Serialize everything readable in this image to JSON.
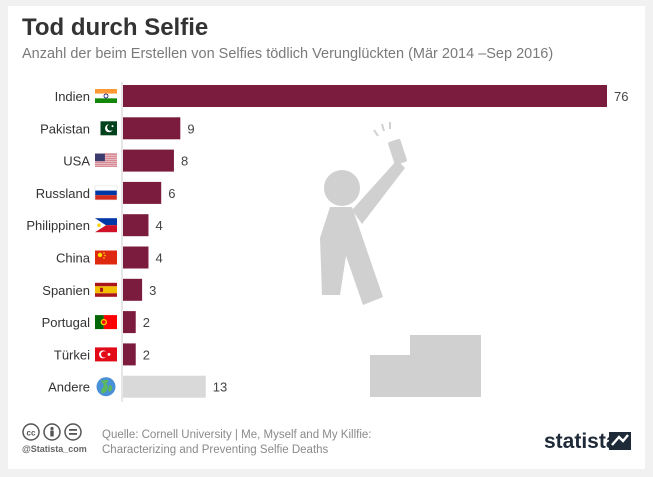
{
  "header": {
    "title": "Tod durch Selfie",
    "subtitle": "Anzahl der beim Erstellen von Selfies tödlich Verunglückten (Mär 2014 –Sep 2016)"
  },
  "chart_data": {
    "type": "bar",
    "orientation": "horizontal",
    "categories": [
      "Indien",
      "Pakistan",
      "USA",
      "Russland",
      "Philippinen",
      "China",
      "Spanien",
      "Portugal",
      "Türkei",
      "Andere"
    ],
    "values": [
      76,
      9,
      8,
      6,
      4,
      4,
      3,
      2,
      2,
      13
    ],
    "data_labels": [
      "76",
      "9",
      "8",
      "6",
      "4",
      "4",
      "3",
      "2",
      "2",
      "13"
    ],
    "xlim": [
      0,
      76
    ],
    "grid": false,
    "legend": "none",
    "colors": {
      "bar": "#7b1c3e",
      "other_bar": "#d9d9d9",
      "axis": "#cccccc"
    },
    "category_icons": [
      "india-flag-icon",
      "pakistan-flag-icon",
      "usa-flag-icon",
      "russia-flag-icon",
      "philippines-flag-icon",
      "china-flag-icon",
      "spain-flag-icon",
      "portugal-flag-icon",
      "turkey-flag-icon",
      "globe-icon"
    ]
  },
  "decoration": {
    "illustration": "selfie-falling-person-icon",
    "color": "#d0d0d0"
  },
  "footer": {
    "source_line1": "Quelle: Cornell University | Me, Myself and My Killfie:",
    "source_line2": "Characterizing and Preventing Selfie Deaths",
    "handle": "@Statista_com",
    "brand": "statista",
    "license_icons": [
      "cc-icon",
      "by-icon",
      "nd-icon"
    ]
  }
}
